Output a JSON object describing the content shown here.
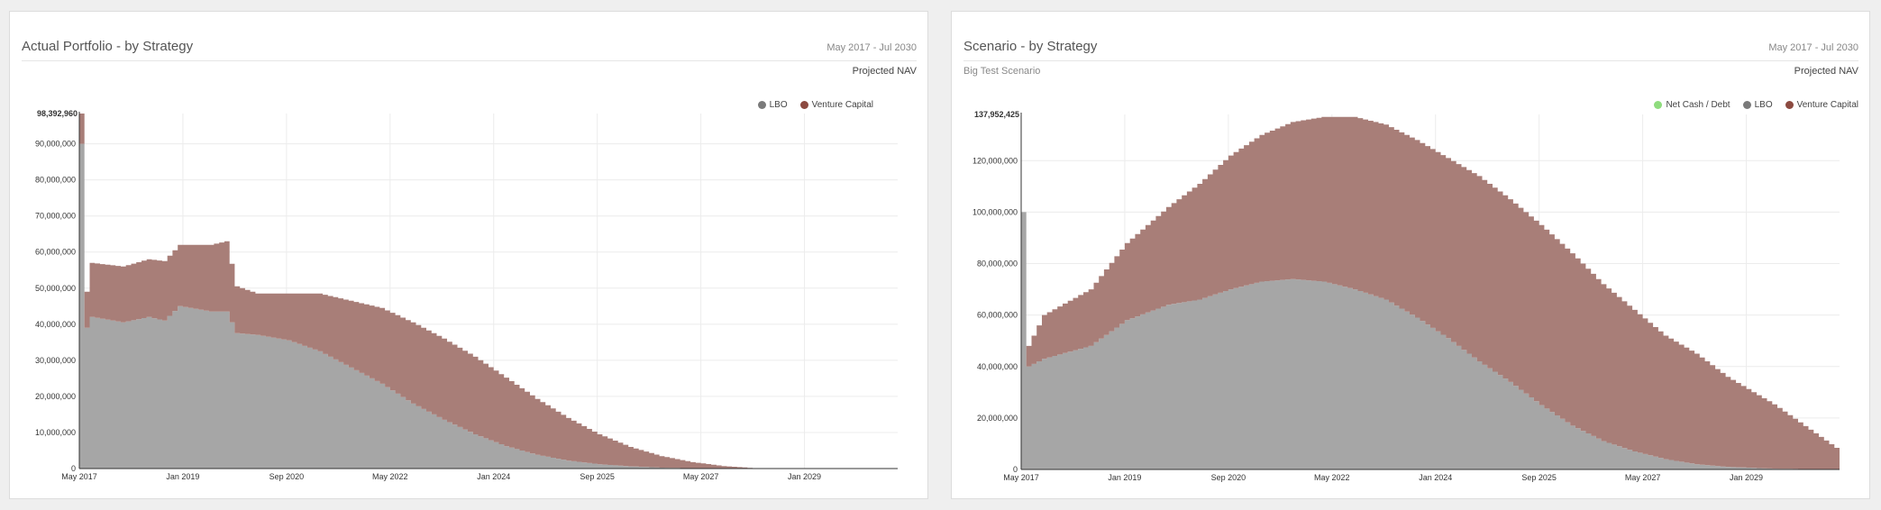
{
  "panels": [
    {
      "title": "Actual Portfolio - by Strategy",
      "date_range": "May 2017 - Jul 2030",
      "subtitle": "Projected NAV",
      "scenario_name": "",
      "legend": [
        {
          "label": "LBO",
          "color": "#7a7a7a"
        },
        {
          "label": "Venture Capital",
          "color": "#8c4a40"
        }
      ]
    },
    {
      "title": "Scenario - by Strategy",
      "date_range": "May 2017 - Jul 2030",
      "subtitle": "Projected NAV",
      "scenario_name": "Big Test Scenario",
      "legend": [
        {
          "label": "Net Cash / Debt",
          "color": "#8fdc7e"
        },
        {
          "label": "LBO",
          "color": "#7a7a7a"
        },
        {
          "label": "Venture Capital",
          "color": "#8c4a40"
        }
      ]
    }
  ],
  "chart_data": [
    {
      "type": "area",
      "stacked": true,
      "x_tick_labels": [
        "May 2017",
        "Jan 2019",
        "Sep 2020",
        "May 2022",
        "Jan 2024",
        "Sep 2025",
        "May 2027",
        "Jan 2029"
      ],
      "y_tick_labels": [
        "0",
        "10,000,000",
        "20,000,000",
        "30,000,000",
        "40,000,000",
        "50,000,000",
        "60,000,000",
        "70,000,000",
        "80,000,000",
        "90,000,000"
      ],
      "y_max_label": "98,392,960",
      "ylim": [
        0,
        98392960
      ],
      "x_start": "May 2017",
      "x_end": "Jul 2030",
      "grid": true,
      "legend_position": "top-right",
      "series": [
        {
          "name": "LBO",
          "color": "#a6a6a6",
          "points": [
            [
              "2017-05",
              90000000
            ],
            [
              "2017-06",
              39000000
            ],
            [
              "2017-07",
              42000000
            ],
            [
              "2018-01",
              40500000
            ],
            [
              "2018-06",
              42000000
            ],
            [
              "2018-09",
              41000000
            ],
            [
              "2018-12",
              45000000
            ],
            [
              "2019-06",
              43500000
            ],
            [
              "2019-09",
              43500000
            ],
            [
              "2019-11",
              37500000
            ],
            [
              "2020-03",
              37000000
            ],
            [
              "2020-09",
              35500000
            ],
            [
              "2021-03",
              32500000
            ],
            [
              "2021-09",
              28000000
            ],
            [
              "2022-03",
              23500000
            ],
            [
              "2022-09",
              18000000
            ],
            [
              "2023-03",
              13500000
            ],
            [
              "2023-09",
              9500000
            ],
            [
              "2024-03",
              6200000
            ],
            [
              "2024-09",
              3800000
            ],
            [
              "2025-03",
              2200000
            ],
            [
              "2025-09",
              1200000
            ],
            [
              "2026-03",
              600000
            ],
            [
              "2026-09",
              250000
            ],
            [
              "2027-03",
              80000
            ],
            [
              "2027-09",
              0
            ],
            [
              "2030-07",
              0
            ]
          ]
        },
        {
          "name": "Venture Capital",
          "color": "#a87e78",
          "points": [
            [
              "2017-05",
              8392960
            ],
            [
              "2017-06",
              10000000
            ],
            [
              "2017-07",
              15000000
            ],
            [
              "2018-01",
              15500000
            ],
            [
              "2018-06",
              16000000
            ],
            [
              "2018-09",
              16500000
            ],
            [
              "2018-12",
              17000000
            ],
            [
              "2019-06",
              18500000
            ],
            [
              "2019-09",
              19500000
            ],
            [
              "2019-11",
              13000000
            ],
            [
              "2020-03",
              11500000
            ],
            [
              "2020-09",
              13000000
            ],
            [
              "2021-03",
              16000000
            ],
            [
              "2021-09",
              18500000
            ],
            [
              "2022-03",
              21000000
            ],
            [
              "2022-09",
              22500000
            ],
            [
              "2023-03",
              22500000
            ],
            [
              "2023-09",
              21500000
            ],
            [
              "2024-03",
              19000000
            ],
            [
              "2024-09",
              15500000
            ],
            [
              "2025-03",
              11800000
            ],
            [
              "2025-09",
              8300000
            ],
            [
              "2026-03",
              5400000
            ],
            [
              "2026-09",
              3200000
            ],
            [
              "2027-03",
              1700000
            ],
            [
              "2027-09",
              700000
            ],
            [
              "2028-03",
              100000
            ],
            [
              "2028-06",
              0
            ],
            [
              "2030-07",
              0
            ]
          ]
        }
      ]
    },
    {
      "type": "area",
      "stacked": true,
      "x_tick_labels": [
        "May 2017",
        "Jan 2019",
        "Sep 2020",
        "May 2022",
        "Jan 2024",
        "Sep 2025",
        "May 2027",
        "Jan 2029"
      ],
      "y_tick_labels": [
        "0",
        "20,000,000",
        "40,000,000",
        "60,000,000",
        "80,000,000",
        "100,000,000",
        "120,000,000"
      ],
      "y_max_label": "137,952,425",
      "ylim": [
        0,
        137952425
      ],
      "x_start": "May 2017",
      "x_end": "Jul 2030",
      "grid": true,
      "legend_position": "top-right",
      "series": [
        {
          "name": "Net Cash / Debt",
          "color": "#8fdc7e",
          "points": [
            [
              "2017-05",
              0
            ],
            [
              "2030-07",
              0
            ]
          ]
        },
        {
          "name": "LBO",
          "color": "#a6a6a6",
          "points": [
            [
              "2017-05",
              100000000
            ],
            [
              "2017-06",
              40000000
            ],
            [
              "2017-09",
              43000000
            ],
            [
              "2018-06",
              48000000
            ],
            [
              "2019-01",
              58000000
            ],
            [
              "2019-09",
              64000000
            ],
            [
              "2020-03",
              66000000
            ],
            [
              "2020-09",
              70000000
            ],
            [
              "2021-03",
              73000000
            ],
            [
              "2021-09",
              74000000
            ],
            [
              "2022-03",
              73000000
            ],
            [
              "2022-09",
              70000000
            ],
            [
              "2023-03",
              66000000
            ],
            [
              "2023-09",
              59000000
            ],
            [
              "2024-03",
              51000000
            ],
            [
              "2024-09",
              42000000
            ],
            [
              "2025-03",
              34000000
            ],
            [
              "2025-09",
              25000000
            ],
            [
              "2026-03",
              17000000
            ],
            [
              "2026-09",
              11000000
            ],
            [
              "2027-03",
              7000000
            ],
            [
              "2027-09",
              4000000
            ],
            [
              "2028-03",
              2000000
            ],
            [
              "2028-09",
              1000000
            ],
            [
              "2029-06",
              300000
            ],
            [
              "2030-07",
              0
            ]
          ]
        },
        {
          "name": "Venture Capital",
          "color": "#a87e78",
          "points": [
            [
              "2017-05",
              0
            ],
            [
              "2017-06",
              8000000
            ],
            [
              "2017-09",
              17000000
            ],
            [
              "2018-06",
              22000000
            ],
            [
              "2019-01",
              30000000
            ],
            [
              "2019-09",
              38000000
            ],
            [
              "2020-03",
              45000000
            ],
            [
              "2020-09",
              52000000
            ],
            [
              "2021-03",
              57000000
            ],
            [
              "2021-09",
              61000000
            ],
            [
              "2022-03",
              64000000
            ],
            [
              "2022-09",
              67000000
            ],
            [
              "2023-03",
              68000000
            ],
            [
              "2023-09",
              69000000
            ],
            [
              "2024-03",
              70000000
            ],
            [
              "2024-09",
              72000000
            ],
            [
              "2025-03",
              71000000
            ],
            [
              "2025-09",
              70000000
            ],
            [
              "2026-03",
              67000000
            ],
            [
              "2026-09",
              61000000
            ],
            [
              "2027-03",
              55000000
            ],
            [
              "2027-09",
              48000000
            ],
            [
              "2028-03",
              43000000
            ],
            [
              "2028-09",
              35000000
            ],
            [
              "2029-06",
              25000000
            ],
            [
              "2030-07",
              7000000
            ]
          ]
        }
      ]
    }
  ]
}
